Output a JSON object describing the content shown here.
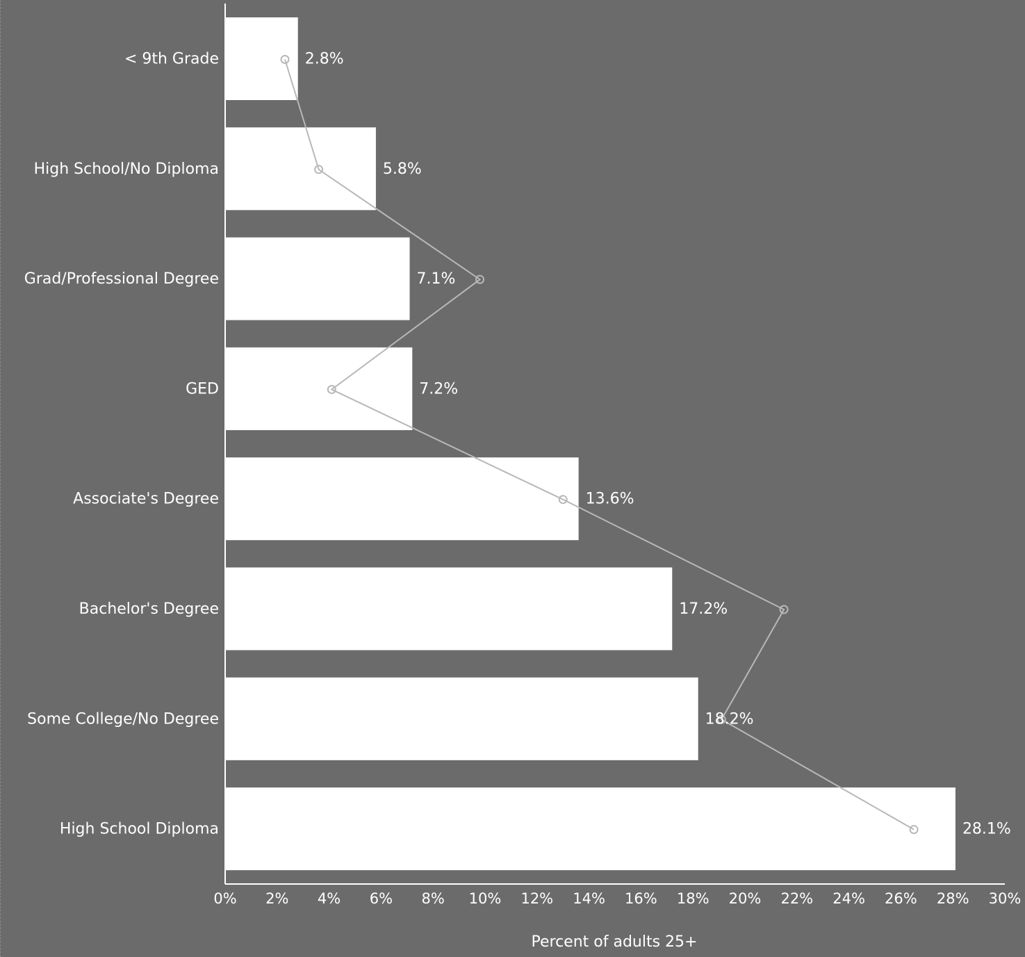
{
  "chart_data": {
    "type": "bar",
    "orientation": "horizontal",
    "categories": [
      "< 9th Grade",
      "High School/No Diploma",
      "Grad/Professional Degree",
      "GED",
      "Associate's Degree",
      "Bachelor's Degree",
      "Some College/No Degree",
      "High School Diploma"
    ],
    "values": [
      2.8,
      5.8,
      7.1,
      7.2,
      13.6,
      17.2,
      18.2,
      28.1
    ],
    "value_labels": [
      "2.8%",
      "5.8%",
      "7.1%",
      "7.2%",
      "13.6%",
      "17.2%",
      "18.2%",
      "28.1%"
    ],
    "line_series": {
      "values": [
        2.3,
        3.6,
        9.8,
        4.1,
        13.0,
        21.5,
        19.1,
        26.5
      ]
    },
    "xlabel": "Percent of adults 25+",
    "xlim": [
      0,
      30
    ],
    "xticks": [
      "0%",
      "2%",
      "4%",
      "6%",
      "8%",
      "10%",
      "12%",
      "14%",
      "16%",
      "18%",
      "20%",
      "22%",
      "24%",
      "26%",
      "28%",
      "30%"
    ],
    "grid": false,
    "colors": {
      "background": "#6b6b6b",
      "bar": "#ffffff",
      "line": "#b8b8b8",
      "text": "#ffffff"
    }
  }
}
